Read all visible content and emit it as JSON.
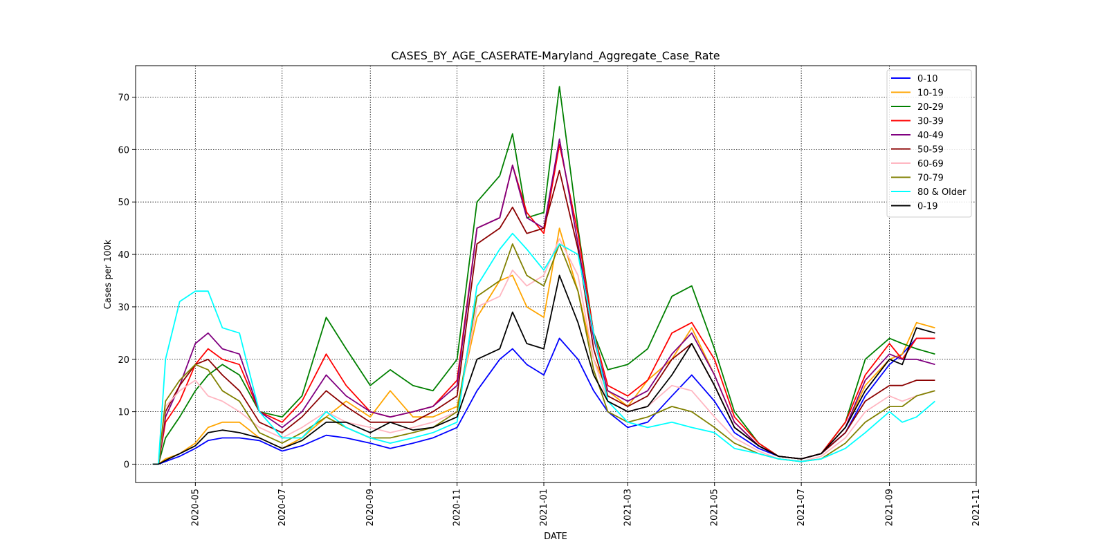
{
  "chart_data": {
    "type": "line",
    "title": "CASES_BY_AGE_CASERATE-Maryland_Aggregate_Case_Rate",
    "xlabel": "DATE",
    "ylabel": "Cases per 100k",
    "x_ticks": [
      "2020-05",
      "2020-07",
      "2020-09",
      "2020-11",
      "2021-01",
      "2021-03",
      "2021-05",
      "2021-07",
      "2021-09",
      "2021-11"
    ],
    "y_ticks": [
      0,
      10,
      20,
      30,
      40,
      50,
      60,
      70
    ],
    "xlim": [
      "2020-03-20",
      "2021-11-01"
    ],
    "ylim": [
      -3.5,
      76
    ],
    "grid": true,
    "legend_position": "top-right",
    "x": [
      "2020-04-01",
      "2020-04-05",
      "2020-04-10",
      "2020-04-20",
      "2020-05-01",
      "2020-05-10",
      "2020-05-20",
      "2020-06-01",
      "2020-06-15",
      "2020-07-01",
      "2020-07-15",
      "2020-08-01",
      "2020-08-15",
      "2020-09-01",
      "2020-09-15",
      "2020-10-01",
      "2020-10-15",
      "2020-11-01",
      "2020-11-15",
      "2020-12-01",
      "2020-12-10",
      "2020-12-20",
      "2021-01-01",
      "2021-01-12",
      "2021-01-25",
      "2021-02-05",
      "2021-02-15",
      "2021-03-01",
      "2021-03-15",
      "2021-04-01",
      "2021-04-15",
      "2021-05-01",
      "2021-05-15",
      "2021-06-01",
      "2021-06-15",
      "2021-07-01",
      "2021-07-15",
      "2021-08-01",
      "2021-08-15",
      "2021-09-01",
      "2021-09-10",
      "2021-09-20",
      "2021-10-03"
    ],
    "series": [
      {
        "name": "0-10",
        "color": "#0000ff",
        "values": [
          0,
          0,
          0.5,
          1.5,
          3,
          4.5,
          5,
          5,
          4.5,
          2.5,
          3.5,
          5.5,
          5,
          4,
          3,
          4,
          5,
          7,
          14,
          20,
          22,
          19,
          17,
          24,
          20,
          14,
          10,
          7,
          8,
          13,
          17,
          12,
          6,
          3,
          1.5,
          1,
          2,
          6,
          13,
          19,
          21,
          24,
          24
        ]
      },
      {
        "name": "10-19",
        "color": "#ffa500",
        "values": [
          0,
          0,
          1,
          2,
          4,
          7,
          8,
          8,
          5,
          3,
          5,
          9,
          12,
          9,
          14,
          9,
          9,
          11,
          28,
          35,
          36,
          30,
          28,
          45,
          33,
          20,
          14,
          11,
          16,
          20,
          26,
          17,
          8,
          3.5,
          1.5,
          1,
          2,
          7,
          15,
          20,
          21,
          27,
          26
        ]
      },
      {
        "name": "20-29",
        "color": "#008000",
        "values": [
          0,
          0,
          5,
          9,
          14,
          17,
          19,
          17,
          10,
          9,
          13,
          28,
          22,
          15,
          18,
          15,
          14,
          20,
          50,
          55,
          63,
          47,
          48,
          72,
          45,
          25,
          18,
          19,
          22,
          32,
          34,
          22,
          10,
          4,
          1.5,
          1,
          2,
          8,
          20,
          24,
          23,
          22,
          21
        ]
      },
      {
        "name": "30-39",
        "color": "#ff0000",
        "values": [
          0,
          0,
          8,
          12,
          19,
          22,
          20,
          19,
          10,
          8,
          12,
          21,
          15,
          10,
          9,
          10,
          11,
          16,
          45,
          47,
          57,
          48,
          44,
          61,
          44,
          25,
          15,
          13,
          16,
          25,
          27,
          20,
          9,
          4,
          1.5,
          1,
          2,
          8,
          17,
          23,
          20,
          24,
          24
        ]
      },
      {
        "name": "40-49",
        "color": "#800080",
        "values": [
          0,
          0,
          9,
          15,
          23,
          25,
          22,
          21,
          10,
          7,
          10,
          17,
          13,
          10,
          9,
          10,
          11,
          15,
          45,
          47,
          57,
          47,
          45,
          62,
          42,
          24,
          14,
          12,
          14,
          21,
          25,
          17,
          8,
          3.5,
          1.5,
          1,
          2,
          7,
          16,
          21,
          20,
          20,
          19
        ]
      },
      {
        "name": "50-59",
        "color": "#8b0000",
        "values": [
          0,
          0,
          10,
          15,
          19,
          20,
          17,
          14,
          8,
          6,
          9,
          14,
          11,
          8,
          8,
          8,
          10,
          13,
          42,
          45,
          49,
          44,
          45,
          56,
          41,
          22,
          13,
          11,
          13,
          20,
          23,
          15,
          7,
          3.5,
          1.5,
          1,
          2,
          6,
          12,
          15,
          15,
          16,
          16
        ]
      },
      {
        "name": "60-69",
        "color": "#ffb6c1",
        "values": [
          0,
          0,
          11,
          14,
          16,
          13,
          12,
          10,
          7,
          5,
          7,
          10,
          8,
          7,
          6,
          7,
          8,
          10,
          30,
          32,
          37,
          34,
          36,
          43,
          36,
          20,
          12,
          10,
          11,
          15,
          14,
          9,
          5,
          2.5,
          1,
          0.5,
          1.5,
          5,
          10,
          13,
          12,
          13,
          14
        ]
      },
      {
        "name": "70-79",
        "color": "#808000",
        "values": [
          0,
          0,
          12,
          16,
          19,
          18,
          14,
          12,
          6,
          4,
          6,
          9,
          7,
          5,
          5,
          6,
          7,
          10,
          32,
          35,
          42,
          36,
          34,
          42,
          33,
          18,
          10,
          8,
          9,
          11,
          10,
          7,
          4,
          2,
          1,
          0.5,
          1,
          4,
          8,
          11,
          11,
          13,
          14
        ]
      },
      {
        "name": "80 & Older",
        "color": "#00ffff",
        "values": [
          0,
          0,
          20,
          31,
          33,
          33,
          26,
          25,
          10,
          5,
          5,
          10,
          7,
          5,
          4,
          5,
          6,
          8,
          34,
          41,
          44,
          41,
          37,
          42,
          40,
          25,
          12,
          8,
          7,
          8,
          7,
          6,
          3,
          2,
          1,
          0.5,
          1,
          3,
          6,
          10,
          8,
          9,
          12
        ]
      },
      {
        "name": "0-19",
        "color": "#000000",
        "values": [
          0,
          0,
          0.7,
          2,
          3.5,
          6,
          6.5,
          6,
          5,
          3,
          4.5,
          8,
          8,
          6,
          8,
          6.5,
          7,
          9,
          20,
          22,
          29,
          23,
          22,
          36,
          27,
          17,
          12,
          10,
          11,
          17,
          23,
          15,
          7,
          3.5,
          1.5,
          1,
          2,
          7,
          14,
          20,
          19,
          26,
          25
        ]
      }
    ]
  }
}
